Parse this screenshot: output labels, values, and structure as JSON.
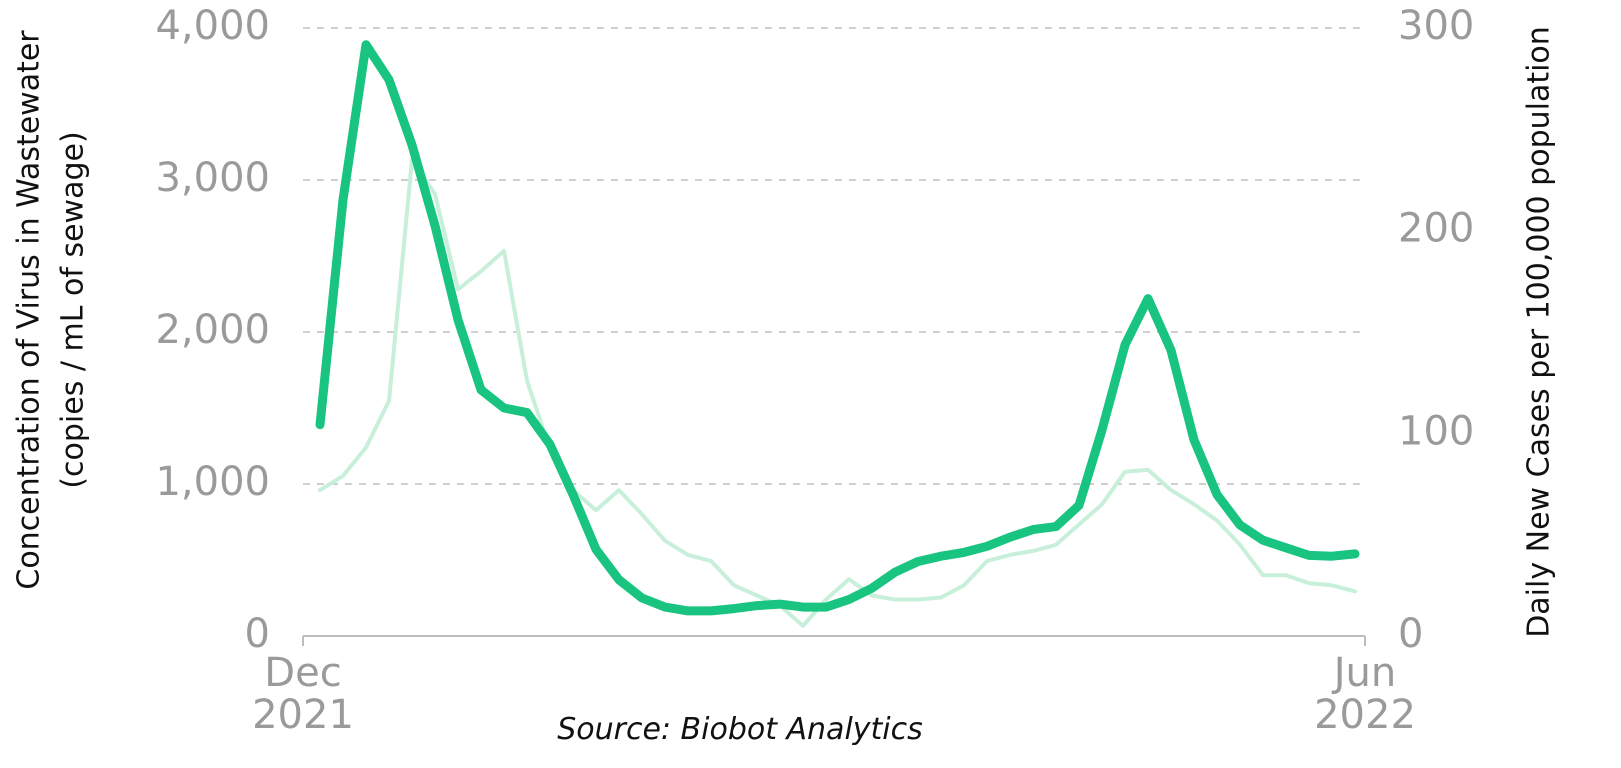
{
  "chart_data": {
    "type": "line",
    "ylabel": [
      "Concentration of Virus in Wastewater",
      "(copies / mL of sewage)"
    ],
    "y2label": "Daily New Cases per 100,000 population",
    "source": "Source: Biobot Analytics",
    "categories": [
      "Dec 2021",
      null,
      null,
      null,
      null,
      null,
      null,
      null,
      null,
      null,
      null,
      null,
      null,
      null,
      null,
      null,
      null,
      null,
      null,
      null,
      null,
      null,
      null,
      null,
      null,
      null,
      null,
      null,
      null,
      null,
      null,
      null,
      null,
      null,
      null,
      null,
      null,
      null,
      null,
      null,
      null,
      null,
      null,
      null,
      null,
      "Jun 2022"
    ],
    "series": [
      {
        "color": "#c8efda",
        "axis": "y2",
        "width": 4,
        "values": [
          72,
          79,
          93,
          116,
          235,
          218,
          171,
          180,
          190,
          126,
          92,
          72,
          62,
          72,
          60,
          47,
          40,
          37,
          25,
          20,
          15,
          5,
          18,
          28,
          20,
          18,
          18,
          19,
          25,
          37,
          40,
          42,
          45,
          55,
          65,
          81,
          82,
          72,
          65,
          57,
          45,
          30,
          30,
          26,
          25,
          22
        ]
      },
      {
        "color": "#18c47f",
        "width": 9,
        "values": [
          1390,
          2870,
          3890,
          3660,
          3230,
          2700,
          2080,
          1620,
          1500,
          1470,
          1260,
          930,
          570,
          370,
          250,
          190,
          165,
          165,
          180,
          200,
          210,
          190,
          190,
          240,
          315,
          420,
          490,
          525,
          550,
          590,
          650,
          700,
          720,
          860,
          1355,
          1915,
          2220,
          1880,
          1290,
          930,
          730,
          630,
          580,
          530,
          525,
          540
        ]
      }
    ],
    "ylim": [
      0,
      4000
    ],
    "yticks": [
      {
        "value": 0,
        "label": "0"
      },
      {
        "value": 1000,
        "label": "1,000"
      },
      {
        "value": 2000,
        "label": "2,000"
      },
      {
        "value": 3000,
        "label": "3,000"
      },
      {
        "value": 4000,
        "label": "4,000"
      }
    ],
    "y2lim": [
      0,
      300
    ],
    "y2ticks": [
      0,
      100,
      200,
      300
    ],
    "grid": true
  }
}
